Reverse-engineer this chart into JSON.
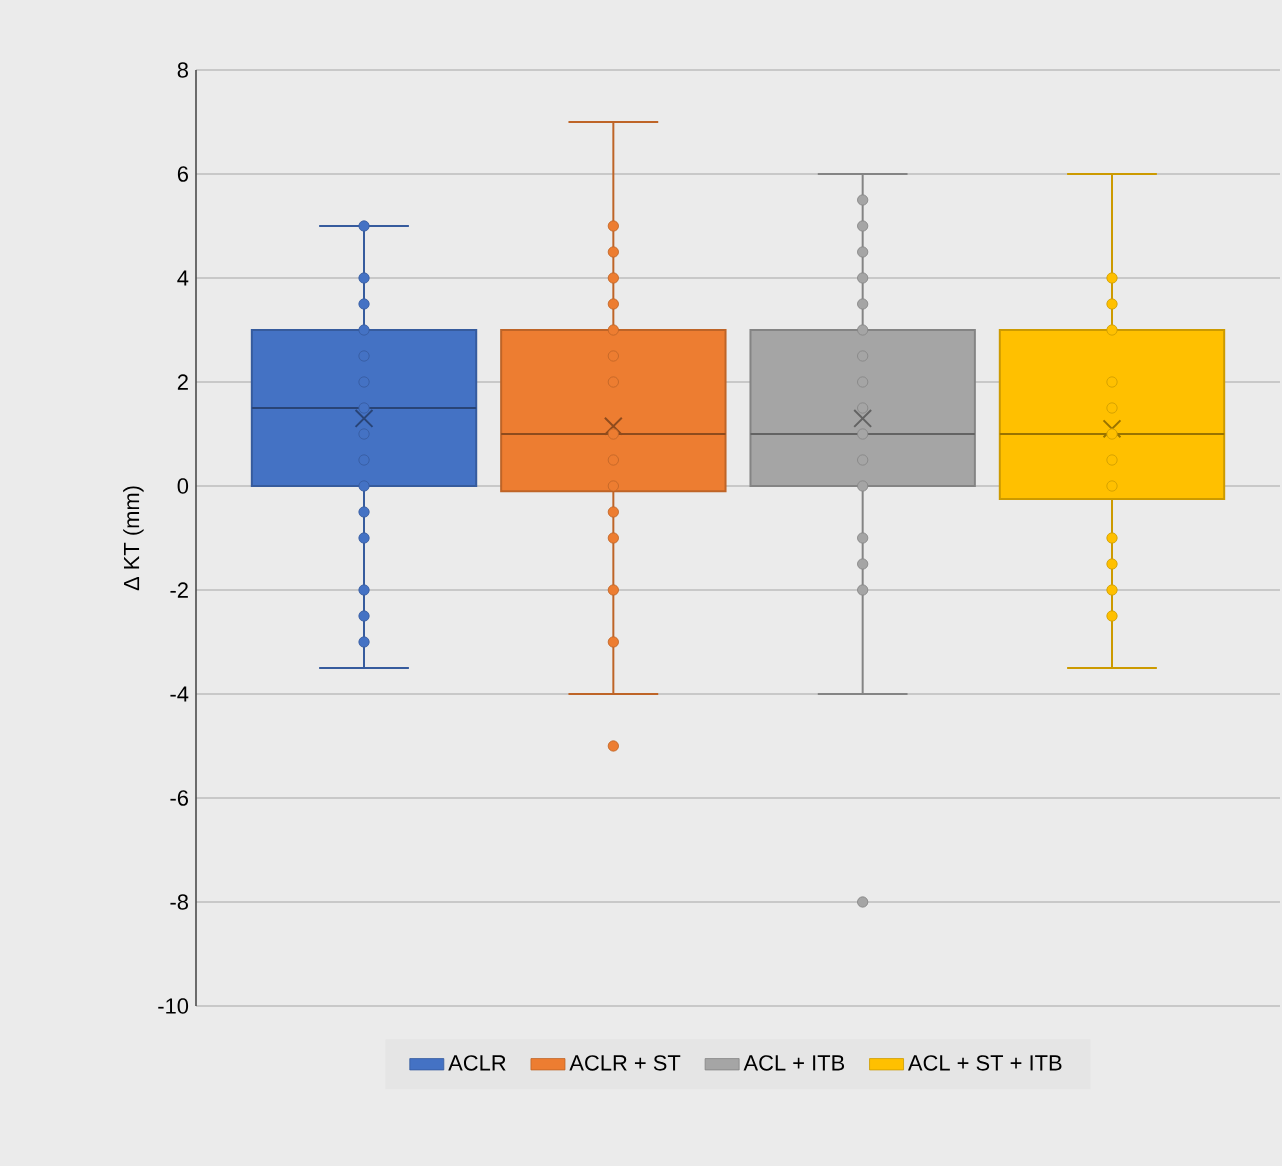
{
  "chart_data": {
    "type": "box",
    "ylabel": "Δ KT (mm)",
    "categories": [
      null
    ],
    "ylim": [
      -10,
      8
    ],
    "yticks": [
      -10,
      -8,
      -6,
      -4,
      -2,
      0,
      2,
      4,
      6,
      8
    ],
    "grid": "y",
    "legend": "bottom",
    "tick_labels": "y",
    "series": [
      {
        "name": "ACLR",
        "color": "#4472c4",
        "boxes": [
          {
            "low": -3.5,
            "q1": 0,
            "median": 1.5,
            "q3": 3,
            "high": 5,
            "mean": 1.3
          }
        ]
      },
      {
        "name": "ACLR + ST",
        "color": "#ed7d31",
        "boxes": [
          {
            "low": -4,
            "q1": -0.1,
            "median": 1,
            "q3": 3,
            "high": 7,
            "mean": 1.15,
            "outliers": [
              -5
            ]
          }
        ]
      },
      {
        "name": "ACL + ITB",
        "color": "#a5a5a5",
        "boxes": [
          {
            "low": -4,
            "q1": 0,
            "median": 1,
            "q3": 3,
            "high": 6,
            "mean": 1.3,
            "outliers": [
              -8
            ]
          }
        ]
      },
      {
        "name": "ACL + ST + ITB",
        "color": "#ffc000",
        "boxes": [
          {
            "low": -3.5,
            "q1": -0.25,
            "median": 1,
            "q3": 3,
            "high": 6,
            "mean": 1.1
          }
        ]
      },
      {
        "type": "scatter",
        "color": "#4472c4",
        "x": [
          null,
          null,
          null,
          null,
          null,
          null,
          null,
          null,
          null,
          null,
          null,
          null,
          null,
          null,
          null
        ],
        "values": [
          5,
          4,
          3.5,
          3,
          2.5,
          2,
          1.5,
          1,
          0.5,
          0,
          -0.5,
          -1,
          -2,
          -2.5,
          -3
        ]
      },
      {
        "type": "scatter",
        "color": "#ed7d31",
        "x": [
          null,
          null,
          null,
          null,
          null,
          null,
          null,
          null,
          null,
          null,
          null,
          null,
          null,
          null
        ],
        "values": [
          5,
          4.5,
          4,
          3.5,
          3,
          2.5,
          2,
          1,
          0.5,
          0,
          -0.5,
          -1,
          -2,
          -3
        ]
      },
      {
        "type": "scatter",
        "color": "#a5a5a5",
        "x": [
          null,
          null,
          null,
          null,
          null,
          null,
          null,
          null,
          null,
          null,
          null,
          null,
          null,
          null,
          null
        ],
        "values": [
          5.5,
          5,
          4.5,
          4,
          3.5,
          3,
          2.5,
          2,
          1.5,
          1,
          0.5,
          0,
          -1,
          -1.5,
          -2
        ]
      },
      {
        "type": "scatter",
        "color": "#ffc000",
        "x": [
          null,
          null,
          null,
          null,
          null,
          null,
          null,
          null,
          null,
          null,
          null,
          null
        ],
        "values": [
          4,
          3.5,
          3,
          2,
          1.5,
          1,
          0.5,
          0,
          -1,
          -1.5,
          -2,
          -2.5
        ]
      }
    ]
  }
}
